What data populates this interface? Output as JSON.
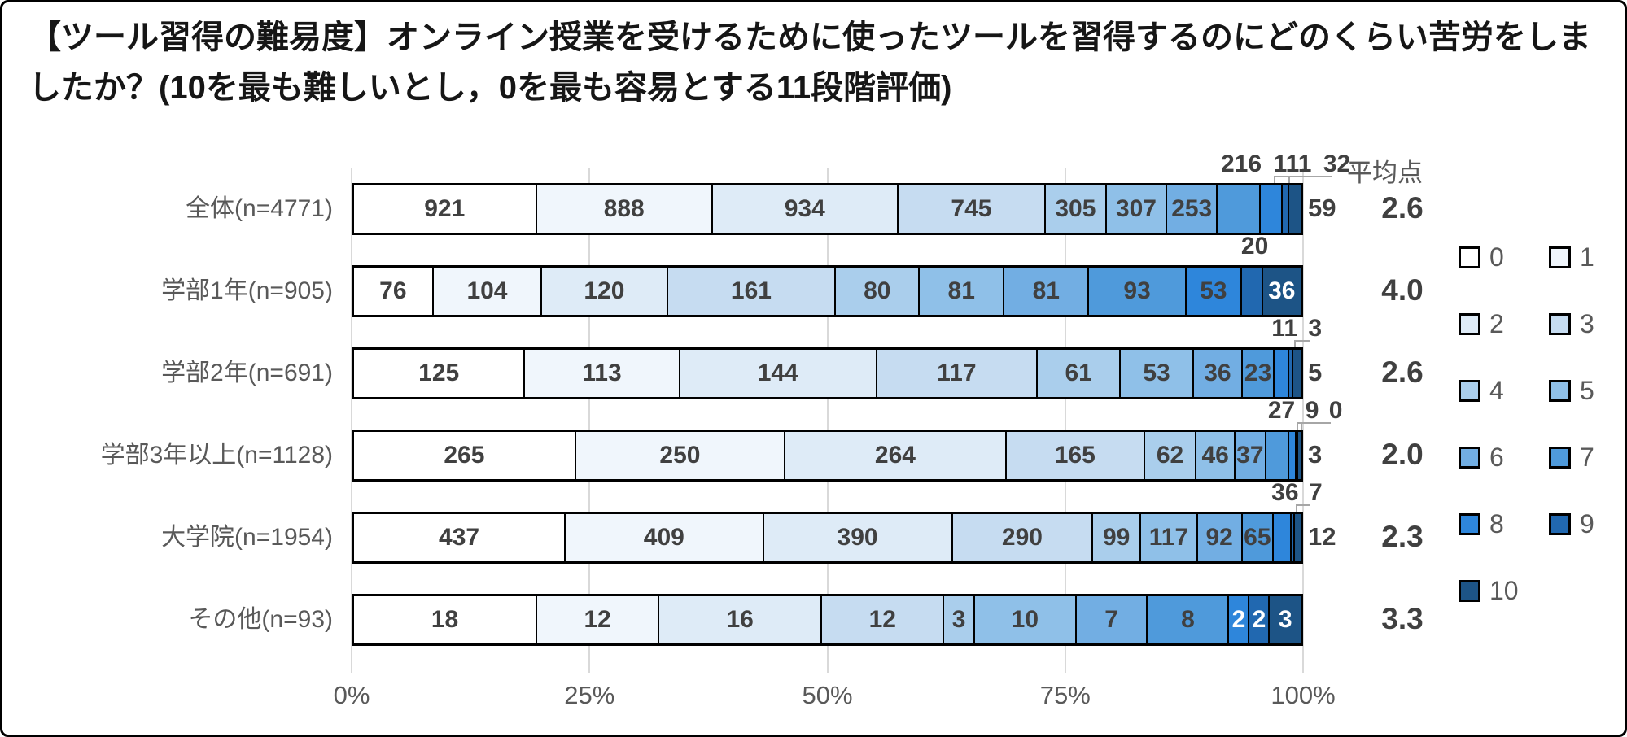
{
  "title": "【ツール習得の難易度】オンライン授業を受けるために使ったツールを習得するのにどのくらい苦労をしましたか？(10を最も難しいとし，0を最も容易とする11段階評価)",
  "chart_data": {
    "type": "bar",
    "subtype": "horizontal-100%-stacked",
    "title": "【ツール習得の難易度】オンライン授業を受けるために使ったツールを習得するのにどのくらい苦労をしましたか？(10を最も難しいとし，0を最も容易とする11段階評価)",
    "levels": [
      "0",
      "1",
      "2",
      "3",
      "4",
      "5",
      "6",
      "7",
      "8",
      "9",
      "10"
    ],
    "palette": [
      "#ffffff",
      "#f0f6fc",
      "#deebf7",
      "#c6dcf1",
      "#aaceec",
      "#8fc0e8",
      "#72aee3",
      "#4f9adb",
      "#2e86db",
      "#2168b0",
      "#1d5486"
    ],
    "average_header": "平均点",
    "x_ticks": [
      "0%",
      "25%",
      "50%",
      "75%",
      "100%"
    ],
    "xlim": [
      "0%",
      "100%"
    ],
    "grid": "vertical-light-gray",
    "legend_position": "right-two-columns",
    "rows": [
      {
        "label": "全体(n=4771)",
        "n": 4771,
        "average": "2.6",
        "values": [
          921,
          888,
          934,
          745,
          305,
          307,
          253,
          216,
          111,
          32,
          59
        ],
        "label_modes": [
          "in",
          "in",
          "in",
          "in",
          "in",
          "in",
          "in",
          "above",
          "above",
          "above",
          "right"
        ]
      },
      {
        "label": "学部1年(n=905)",
        "n": 905,
        "average": "4.0",
        "values": [
          76,
          104,
          120,
          161,
          80,
          81,
          81,
          93,
          53,
          20,
          36
        ],
        "label_modes": [
          "in",
          "in",
          "in",
          "in",
          "in",
          "in",
          "in",
          "in",
          "in",
          "above",
          "in-white"
        ]
      },
      {
        "label": "学部2年(n=691)",
        "n": 691,
        "average": "2.6",
        "values": [
          125,
          113,
          144,
          117,
          61,
          53,
          36,
          23,
          11,
          3,
          5
        ],
        "label_modes": [
          "in",
          "in",
          "in",
          "in",
          "in",
          "in",
          "in",
          "in",
          "above",
          "above",
          "right"
        ]
      },
      {
        "label": "学部3年以上(n=1128)",
        "n": 1128,
        "average": "2.0",
        "values": [
          265,
          250,
          264,
          165,
          62,
          46,
          37,
          27,
          9,
          0,
          3
        ],
        "label_modes": [
          "in",
          "in",
          "in",
          "in",
          "in",
          "in",
          "in",
          "above",
          "above",
          "above",
          "right"
        ]
      },
      {
        "label": "大学院(n=1954)",
        "n": 1954,
        "average": "2.3",
        "values": [
          437,
          409,
          390,
          290,
          99,
          117,
          92,
          65,
          36,
          7,
          12
        ],
        "label_modes": [
          "in",
          "in",
          "in",
          "in",
          "in",
          "in",
          "in",
          "in",
          "above",
          "above",
          "right"
        ]
      },
      {
        "label": "その他(n=93)",
        "n": 93,
        "average": "3.3",
        "values": [
          18,
          12,
          16,
          12,
          3,
          10,
          7,
          8,
          2,
          2,
          3
        ],
        "label_modes": [
          "in",
          "in",
          "in",
          "in",
          "in",
          "in",
          "in",
          "in",
          "in-white",
          "in-white",
          "in-white"
        ]
      }
    ]
  }
}
